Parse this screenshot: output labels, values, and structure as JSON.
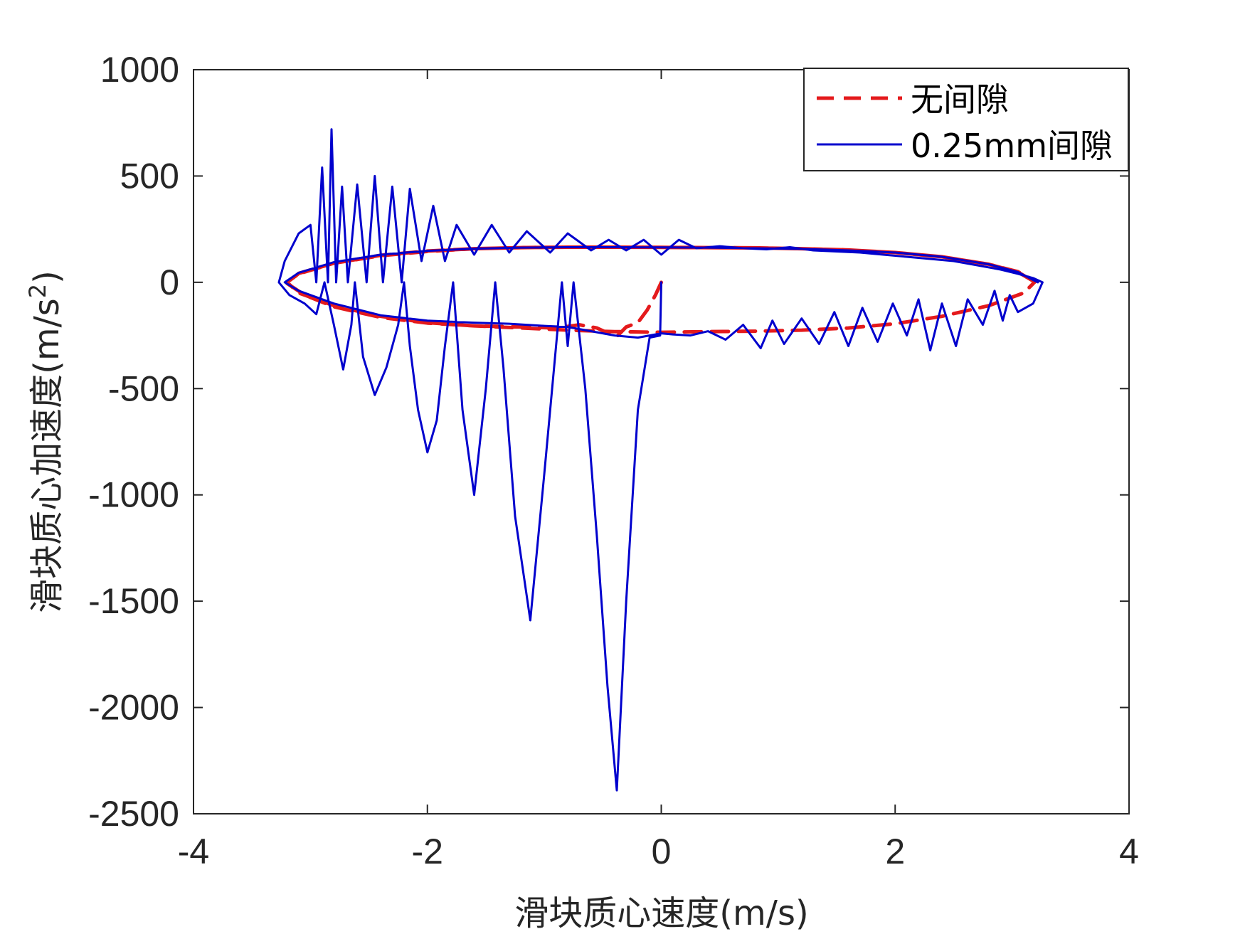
{
  "chart_data": {
    "type": "line",
    "title": "",
    "xlabel": "滑块质心速度(m/s)",
    "ylabel_main": "滑块质心加速度(m/s",
    "ylabel_sup": "2",
    "ylabel_close": ")",
    "xlim": [
      -4,
      4
    ],
    "ylim": [
      -2500,
      1000
    ],
    "xticks": [
      -4,
      -2,
      0,
      2,
      4
    ],
    "xtick_labels": [
      "-4",
      "-2",
      "0",
      "2",
      "4"
    ],
    "yticks": [
      -2500,
      -2000,
      -1500,
      -1000,
      -500,
      0,
      500,
      1000
    ],
    "ytick_labels": [
      "-2500",
      "-2000",
      "-1500",
      "-1000",
      "-500",
      "0",
      "500",
      "1000"
    ],
    "grid": false,
    "legend_position": "top-right",
    "series": [
      {
        "name": "无间隙",
        "color": "#e41a1c",
        "style": "dashed",
        "points": [
          [
            0.0,
            0
          ],
          [
            -0.05,
            -60
          ],
          [
            -0.12,
            -130
          ],
          [
            -0.2,
            -190
          ],
          [
            -0.3,
            -210
          ],
          [
            -0.38,
            -255
          ],
          [
            -0.45,
            -240
          ],
          [
            -0.55,
            -215
          ],
          [
            -0.7,
            -200
          ],
          [
            -0.9,
            -215
          ],
          [
            -1.2,
            -210
          ],
          [
            -1.6,
            -205
          ],
          [
            -2.0,
            -190
          ],
          [
            -2.4,
            -160
          ],
          [
            -2.8,
            -110
          ],
          [
            -3.1,
            -50
          ],
          [
            -3.2,
            0
          ],
          [
            -3.1,
            40
          ],
          [
            -2.8,
            90
          ],
          [
            -2.4,
            125
          ],
          [
            -2.0,
            145
          ],
          [
            -1.6,
            158
          ],
          [
            -1.2,
            163
          ],
          [
            -0.8,
            165
          ],
          [
            -0.4,
            165
          ],
          [
            0.0,
            164
          ],
          [
            0.4,
            163
          ],
          [
            0.8,
            162
          ],
          [
            1.2,
            158
          ],
          [
            1.6,
            152
          ],
          [
            2.0,
            140
          ],
          [
            2.4,
            120
          ],
          [
            2.8,
            85
          ],
          [
            3.05,
            50
          ],
          [
            3.2,
            5
          ],
          [
            3.1,
            -50
          ],
          [
            2.8,
            -110
          ],
          [
            2.4,
            -160
          ],
          [
            2.0,
            -195
          ],
          [
            1.6,
            -215
          ],
          [
            1.2,
            -225
          ],
          [
            0.8,
            -230
          ],
          [
            0.4,
            -232
          ],
          [
            0.0,
            -235
          ],
          [
            -0.4,
            -232
          ],
          [
            -0.8,
            -225
          ],
          [
            -1.2,
            -215
          ],
          [
            -1.6,
            -205
          ],
          [
            -2.0,
            -192
          ],
          [
            -2.4,
            -165
          ],
          [
            -2.8,
            -115
          ],
          [
            -3.05,
            -60
          ],
          [
            -3.2,
            -5
          ],
          [
            -3.1,
            42
          ],
          [
            -2.8,
            90
          ],
          [
            -2.4,
            127
          ],
          [
            -2.0,
            147
          ],
          [
            -1.6,
            158
          ],
          [
            -1.2,
            163
          ],
          [
            -0.8,
            165
          ],
          [
            -0.4,
            165
          ],
          [
            0.0,
            164
          ],
          [
            0.4,
            163
          ],
          [
            0.8,
            162
          ],
          [
            1.2,
            158
          ],
          [
            1.6,
            152
          ],
          [
            2.0,
            140
          ],
          [
            2.4,
            120
          ],
          [
            2.8,
            85
          ],
          [
            3.05,
            48
          ],
          [
            3.2,
            0
          ]
        ]
      },
      {
        "name": "0.25mm间隙",
        "color": "#0000cd",
        "style": "solid",
        "points": [
          [
            0.0,
            0
          ],
          [
            -0.01,
            -250
          ],
          [
            -0.1,
            -260
          ],
          [
            -0.2,
            -600
          ],
          [
            -0.3,
            -1500
          ],
          [
            -0.38,
            -2390
          ],
          [
            -0.46,
            -1900
          ],
          [
            -0.55,
            -1200
          ],
          [
            -0.65,
            -500
          ],
          [
            -0.75,
            0
          ],
          [
            -0.8,
            -300
          ],
          [
            -0.85,
            0
          ],
          [
            -0.9,
            -300
          ],
          [
            -1.0,
            -900
          ],
          [
            -1.12,
            -1590
          ],
          [
            -1.25,
            -1100
          ],
          [
            -1.35,
            -400
          ],
          [
            -1.42,
            0
          ],
          [
            -1.5,
            -500
          ],
          [
            -1.6,
            -1000
          ],
          [
            -1.7,
            -600
          ],
          [
            -1.78,
            0
          ],
          [
            -1.85,
            -300
          ],
          [
            -1.92,
            -650
          ],
          [
            -2.0,
            -800
          ],
          [
            -2.08,
            -600
          ],
          [
            -2.15,
            -300
          ],
          [
            -2.2,
            0
          ],
          [
            -2.25,
            -200
          ],
          [
            -2.35,
            -400
          ],
          [
            -2.45,
            -530
          ],
          [
            -2.55,
            -350
          ],
          [
            -2.62,
            0
          ],
          [
            -2.65,
            -200
          ],
          [
            -2.72,
            -410
          ],
          [
            -2.8,
            -200
          ],
          [
            -2.88,
            0
          ],
          [
            -2.95,
            -150
          ],
          [
            -3.05,
            -100
          ],
          [
            -3.18,
            -60
          ],
          [
            -3.27,
            0
          ],
          [
            -3.22,
            100
          ],
          [
            -3.1,
            230
          ],
          [
            -3.0,
            270
          ],
          [
            -2.95,
            0
          ],
          [
            -2.9,
            540
          ],
          [
            -2.85,
            0
          ],
          [
            -2.82,
            720
          ],
          [
            -2.78,
            0
          ],
          [
            -2.73,
            450
          ],
          [
            -2.68,
            0
          ],
          [
            -2.6,
            460
          ],
          [
            -2.52,
            0
          ],
          [
            -2.45,
            500
          ],
          [
            -2.38,
            0
          ],
          [
            -2.3,
            450
          ],
          [
            -2.22,
            0
          ],
          [
            -2.15,
            440
          ],
          [
            -2.05,
            100
          ],
          [
            -1.95,
            360
          ],
          [
            -1.85,
            100
          ],
          [
            -1.75,
            270
          ],
          [
            -1.6,
            130
          ],
          [
            -1.45,
            270
          ],
          [
            -1.3,
            140
          ],
          [
            -1.15,
            240
          ],
          [
            -0.95,
            140
          ],
          [
            -0.8,
            230
          ],
          [
            -0.6,
            150
          ],
          [
            -0.45,
            200
          ],
          [
            -0.3,
            150
          ],
          [
            -0.15,
            200
          ],
          [
            0.0,
            130
          ],
          [
            0.15,
            200
          ],
          [
            0.3,
            160
          ],
          [
            0.5,
            170
          ],
          [
            0.7,
            160
          ],
          [
            0.9,
            155
          ],
          [
            1.1,
            165
          ],
          [
            1.3,
            150
          ],
          [
            1.5,
            145
          ],
          [
            1.7,
            140
          ],
          [
            1.9,
            130
          ],
          [
            2.1,
            120
          ],
          [
            2.3,
            110
          ],
          [
            2.5,
            100
          ],
          [
            2.7,
            80
          ],
          [
            2.9,
            60
          ],
          [
            3.05,
            40
          ],
          [
            3.18,
            20
          ],
          [
            3.26,
            0
          ],
          [
            3.18,
            -100
          ],
          [
            3.05,
            -140
          ],
          [
            2.98,
            -60
          ],
          [
            2.92,
            -180
          ],
          [
            2.85,
            -40
          ],
          [
            2.75,
            -200
          ],
          [
            2.62,
            -80
          ],
          [
            2.52,
            -300
          ],
          [
            2.4,
            -100
          ],
          [
            2.3,
            -320
          ],
          [
            2.2,
            -80
          ],
          [
            2.1,
            -250
          ],
          [
            1.98,
            -100
          ],
          [
            1.85,
            -280
          ],
          [
            1.72,
            -120
          ],
          [
            1.6,
            -300
          ],
          [
            1.48,
            -140
          ],
          [
            1.35,
            -290
          ],
          [
            1.2,
            -170
          ],
          [
            1.05,
            -290
          ],
          [
            0.95,
            -180
          ],
          [
            0.85,
            -310
          ],
          [
            0.7,
            -200
          ],
          [
            0.55,
            -270
          ],
          [
            0.4,
            -230
          ],
          [
            0.25,
            -250
          ],
          [
            0.1,
            -245
          ],
          [
            0.0,
            -240
          ],
          [
            -0.2,
            -260
          ],
          [
            -0.4,
            -250
          ],
          [
            -0.6,
            -230
          ],
          [
            -0.8,
            -210
          ],
          [
            -1.0,
            -205
          ],
          [
            -1.3,
            -195
          ],
          [
            -1.6,
            -190
          ],
          [
            -2.0,
            -180
          ],
          [
            -2.4,
            -155
          ],
          [
            -2.8,
            -100
          ],
          [
            -3.1,
            -40
          ],
          [
            -3.22,
            0
          ],
          [
            -3.1,
            45
          ],
          [
            -2.8,
            95
          ],
          [
            -2.4,
            130
          ],
          [
            -2.0,
            148
          ],
          [
            -1.6,
            158
          ],
          [
            -1.2,
            163
          ],
          [
            -0.8,
            165
          ],
          [
            -0.4,
            165
          ],
          [
            0.0,
            164
          ],
          [
            0.4,
            163
          ],
          [
            0.8,
            160
          ],
          [
            1.2,
            157
          ],
          [
            1.6,
            150
          ],
          [
            2.0,
            140
          ],
          [
            2.4,
            120
          ],
          [
            2.8,
            85
          ],
          [
            3.05,
            48
          ],
          [
            3.22,
            0
          ]
        ]
      }
    ]
  }
}
